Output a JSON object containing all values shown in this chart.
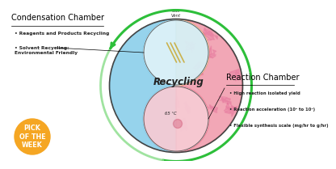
{
  "bg_color": "#ffffff",
  "left_title": "Condensation Chamber",
  "left_bullets": [
    "Reagents and Products Recycling",
    "Solvent Recycling:\nEnvironmental Friendly"
  ],
  "right_title": "Reaction Chamber",
  "right_bullets": [
    "High reaction isolated yield",
    "Reaction acceleration (10² to 10⁴)",
    "Flexible synthesis scale (mg/hr to g/hr)"
  ],
  "recycling_label": "Recycling",
  "top_small_label": "Gas\nVent",
  "bottom_small_label": "65 °C",
  "badge_text": "PICK\nOF THE\nWEEK",
  "badge_color": "#F5A623",
  "green_color": "#3CB84A",
  "green_light": "#90EE90",
  "blue_fill": "#87CEEB",
  "pink_fill": "#E86090",
  "peach_fill": "#F0C090",
  "magenta_fill": "#CC3388"
}
